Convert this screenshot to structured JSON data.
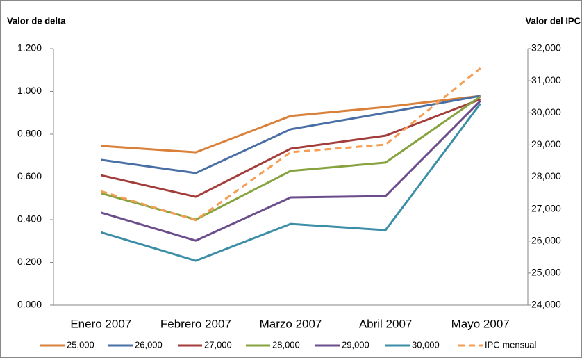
{
  "chart_data": {
    "type": "line",
    "y_label": "Valor de delta",
    "y2_label": "Valor del IPC",
    "categories": [
      "Enero 2007",
      "Febrero 2007",
      "Marzo 2007",
      "Abril 2007",
      "Mayo 2007"
    ],
    "series": [
      {
        "name": "25,000",
        "color": "#d9813a",
        "values": [
          0.745,
          0.715,
          0.885,
          0.927,
          0.979
        ]
      },
      {
        "name": "26,000",
        "color": "#4a6fa5",
        "values": [
          0.68,
          0.618,
          0.823,
          0.9,
          0.979
        ]
      },
      {
        "name": "27,000",
        "color": "#a33d3b",
        "values": [
          0.608,
          0.507,
          0.732,
          0.793,
          0.963
        ]
      },
      {
        "name": "28,000",
        "color": "#87a33f",
        "values": [
          0.524,
          0.4,
          0.628,
          0.667,
          0.976
        ]
      },
      {
        "name": "29,000",
        "color": "#6c4d8b",
        "values": [
          0.433,
          0.302,
          0.504,
          0.51,
          0.956
        ]
      },
      {
        "name": "30,000",
        "color": "#3b8ea6",
        "values": [
          0.341,
          0.208,
          0.38,
          0.351,
          0.943
        ]
      },
      {
        "name": "IPC mensual",
        "color": "#f59d52",
        "axis": "y2",
        "dashed": true,
        "values": [
          27555,
          26650,
          28770,
          29010,
          31390
        ]
      }
    ],
    "ylim": [
      0,
      1.2
    ],
    "yticks": [
      {
        "value": 0,
        "label": "0.000"
      },
      {
        "value": 0.2,
        "label": "0.200"
      },
      {
        "value": 0.4,
        "label": "0.400"
      },
      {
        "value": 0.6,
        "label": "0.600"
      },
      {
        "value": 0.8,
        "label": "0.800"
      },
      {
        "value": 1.0,
        "label": "1.000"
      },
      {
        "value": 1.2,
        "label": "1.200"
      }
    ],
    "y2lim": [
      24000,
      32000
    ],
    "y2ticks": [
      {
        "value": 24000,
        "label": "24,000"
      },
      {
        "value": 25000,
        "label": "25,000"
      },
      {
        "value": 26000,
        "label": "26,000"
      },
      {
        "value": 27000,
        "label": "27,000"
      },
      {
        "value": 28000,
        "label": "28,000"
      },
      {
        "value": 29000,
        "label": "29,000"
      },
      {
        "value": 30000,
        "label": "30,000"
      },
      {
        "value": 31000,
        "label": "31,000"
      },
      {
        "value": 32000,
        "label": "32,000"
      }
    ],
    "legend": "bottom"
  }
}
